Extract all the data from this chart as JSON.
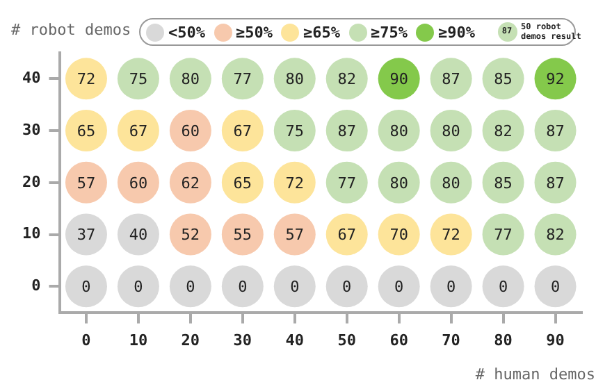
{
  "chart_data": {
    "type": "heatmap",
    "xlabel": "# human demos",
    "ylabel": "# robot demos",
    "categories": [
      "0",
      "10",
      "20",
      "30",
      "40",
      "50",
      "60",
      "70",
      "80",
      "90"
    ],
    "y_categories": [
      "40",
      "30",
      "20",
      "10",
      "0"
    ],
    "cells": [
      [
        72,
        75,
        80,
        77,
        80,
        82,
        90,
        87,
        85,
        92
      ],
      [
        65,
        67,
        60,
        67,
        75,
        87,
        80,
        80,
        82,
        87
      ],
      [
        57,
        60,
        62,
        65,
        72,
        77,
        80,
        80,
        85,
        87
      ],
      [
        37,
        40,
        52,
        55,
        57,
        67,
        70,
        72,
        77,
        82
      ],
      [
        0,
        0,
        0,
        0,
        0,
        0,
        0,
        0,
        0,
        0
      ]
    ],
    "colors": [
      "#fde49a",
      "#c5e0b4",
      "#c5e0b4",
      "#c5e0b4",
      "#c5e0b4",
      "#c5e0b4",
      "#84c94b",
      "#c5e0b4",
      "#c5e0b4",
      "#84c94b",
      "#fde49a",
      "#fde49a",
      "#f7c9ad",
      "#fde49a",
      "#c5e0b4",
      "#c5e0b4",
      "#c5e0b4",
      "#c5e0b4",
      "#c5e0b4",
      "#c5e0b4",
      "#f7c9ad",
      "#f7c9ad",
      "#f7c9ad",
      "#fde49a",
      "#fde49a",
      "#c5e0b4",
      "#c5e0b4",
      "#c5e0b4",
      "#c5e0b4",
      "#c5e0b4",
      "#d9d9d9",
      "#d9d9d9",
      "#f7c9ad",
      "#f7c9ad",
      "#f7c9ad",
      "#fde49a",
      "#fde49a",
      "#fde49a",
      "#c5e0b4",
      "#c5e0b4",
      "#d9d9d9",
      "#d9d9d9",
      "#d9d9d9",
      "#d9d9d9",
      "#d9d9d9",
      "#d9d9d9",
      "#d9d9d9",
      "#d9d9d9",
      "#d9d9d9",
      "#d9d9d9"
    ],
    "data_labels": true,
    "annotations": [
      "<50%",
      "≥50%",
      "≥65%",
      "≥75%",
      "≥90%",
      "87",
      "50 robot demos result"
    ]
  }
}
